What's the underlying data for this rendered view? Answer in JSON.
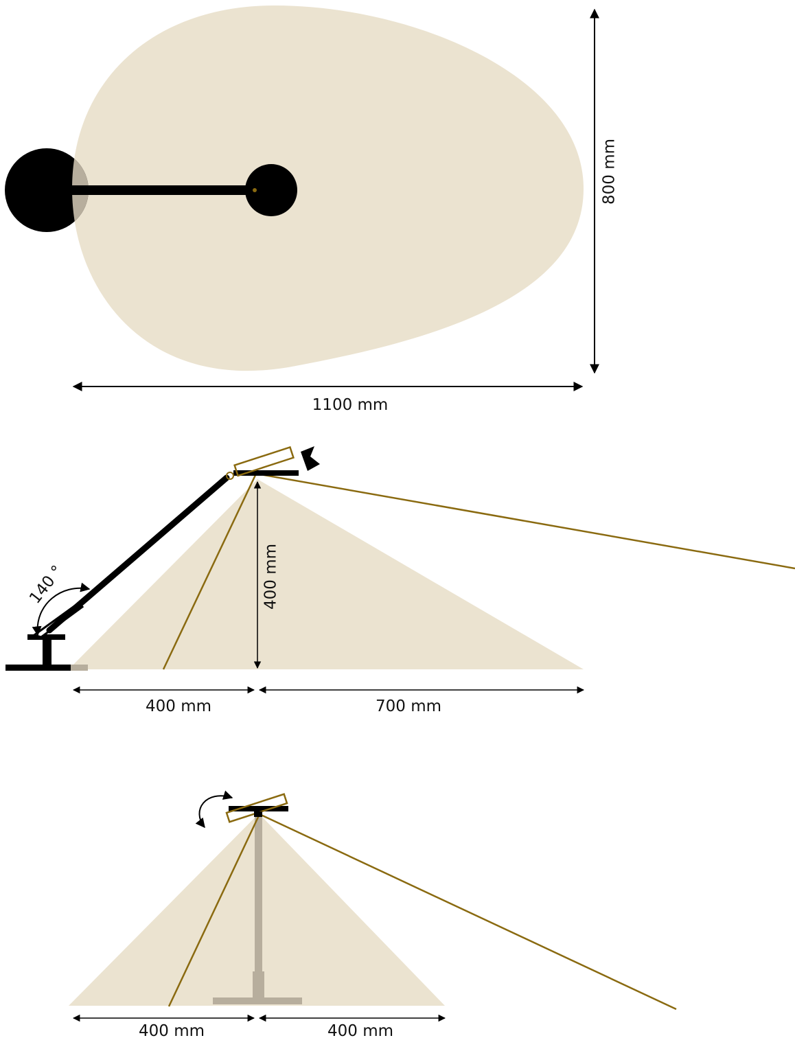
{
  "top_view": {
    "depth_label": "800 mm",
    "width_label": "1100 mm"
  },
  "side_view": {
    "angle_label": "140 °",
    "height_label": "400 mm",
    "left_label": "400 mm",
    "right_label": "700 mm"
  },
  "front_view": {
    "left_label": "400 mm",
    "right_label": "400 mm"
  }
}
